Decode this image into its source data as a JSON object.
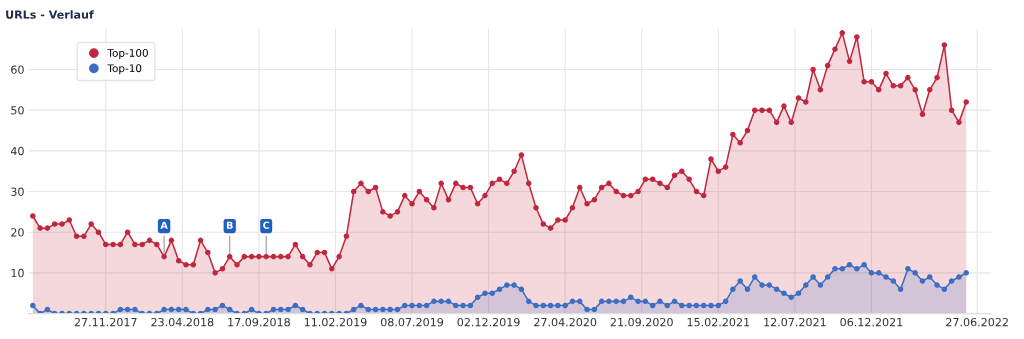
{
  "chart_data": {
    "type": "area",
    "title": "URLs - Verlauf",
    "x": [
      "2017-07-10",
      "2017-07-24",
      "2017-08-07",
      "2017-08-21",
      "2017-09-04",
      "2017-09-18",
      "2017-10-02",
      "2017-10-16",
      "2017-10-30",
      "2017-11-13",
      "2017-11-27",
      "2017-12-11",
      "2017-12-25",
      "2018-01-08",
      "2018-01-22",
      "2018-02-05",
      "2018-02-19",
      "2018-03-05",
      "2018-03-19",
      "2018-04-02",
      "2018-04-16",
      "2018-04-30",
      "2018-05-14",
      "2018-05-28",
      "2018-06-11",
      "2018-06-25",
      "2018-07-09",
      "2018-07-23",
      "2018-08-06",
      "2018-08-20",
      "2018-09-03",
      "2018-09-17",
      "2018-10-01",
      "2018-10-15",
      "2018-10-29",
      "2018-11-12",
      "2018-11-26",
      "2018-12-10",
      "2018-12-24",
      "2019-01-07",
      "2019-01-21",
      "2019-02-04",
      "2019-02-18",
      "2019-03-04",
      "2019-03-18",
      "2019-04-01",
      "2019-04-15",
      "2019-04-29",
      "2019-05-13",
      "2019-05-27",
      "2019-06-10",
      "2019-06-24",
      "2019-07-08",
      "2019-07-22",
      "2019-08-05",
      "2019-08-19",
      "2019-09-02",
      "2019-09-16",
      "2019-09-30",
      "2019-10-14",
      "2019-10-28",
      "2019-11-11",
      "2019-11-25",
      "2019-12-09",
      "2019-12-23",
      "2020-01-06",
      "2020-01-20",
      "2020-02-03",
      "2020-02-17",
      "2020-03-02",
      "2020-03-16",
      "2020-03-30",
      "2020-04-13",
      "2020-04-27",
      "2020-05-11",
      "2020-05-25",
      "2020-06-08",
      "2020-06-22",
      "2020-07-06",
      "2020-07-20",
      "2020-08-03",
      "2020-08-17",
      "2020-08-31",
      "2020-09-14",
      "2020-09-28",
      "2020-10-12",
      "2020-10-26",
      "2020-11-09",
      "2020-11-23",
      "2020-12-07",
      "2020-12-21",
      "2021-01-04",
      "2021-01-18",
      "2021-02-01",
      "2021-02-15",
      "2021-03-01",
      "2021-03-15",
      "2021-03-29",
      "2021-04-12",
      "2021-04-26",
      "2021-05-10",
      "2021-05-24",
      "2021-06-07",
      "2021-06-21",
      "2021-07-05",
      "2021-07-19",
      "2021-08-02",
      "2021-08-16",
      "2021-08-30",
      "2021-09-13",
      "2021-09-27",
      "2021-10-11",
      "2021-10-25",
      "2021-11-08",
      "2021-11-22",
      "2021-12-06",
      "2021-12-20",
      "2022-01-03",
      "2022-01-17",
      "2022-01-31",
      "2022-02-14",
      "2022-02-28",
      "2022-03-14",
      "2022-03-28",
      "2022-04-11",
      "2022-04-25",
      "2022-05-09",
      "2022-05-23",
      "2022-06-06"
    ],
    "series": [
      {
        "name": "Top-100",
        "color": "#c0283f",
        "values": [
          24,
          21,
          21,
          22,
          22,
          23,
          19,
          19,
          22,
          20,
          17,
          17,
          17,
          20,
          17,
          17,
          18,
          17,
          14,
          18,
          13,
          12,
          12,
          18,
          15,
          10,
          11,
          14,
          12,
          14,
          14,
          14,
          14,
          14,
          14,
          14,
          17,
          14,
          12,
          15,
          15,
          11,
          14,
          19,
          30,
          32,
          30,
          31,
          25,
          24,
          25,
          29,
          27,
          30,
          28,
          26,
          32,
          28,
          32,
          31,
          31,
          27,
          29,
          32,
          33,
          32,
          35,
          39,
          32,
          26,
          22,
          21,
          23,
          23,
          26,
          31,
          27,
          28,
          31,
          32,
          30,
          29,
          29,
          30,
          33,
          33,
          32,
          31,
          34,
          35,
          33,
          30,
          29,
          38,
          35,
          36,
          44,
          42,
          45,
          50,
          50,
          50,
          47,
          51,
          47,
          53,
          52,
          60,
          55,
          61,
          65,
          69,
          62,
          68,
          57,
          57,
          55,
          59,
          56,
          56,
          58,
          55,
          49,
          55,
          58,
          66,
          50,
          47,
          52
        ]
      },
      {
        "name": "Top-10",
        "color": "#3d6ec4",
        "values": [
          2,
          0,
          1,
          0,
          0,
          0,
          0,
          0,
          0,
          0,
          0,
          0,
          1,
          1,
          1,
          0,
          0,
          0,
          1,
          1,
          1,
          1,
          0,
          0,
          1,
          1,
          2,
          1,
          0,
          0,
          1,
          0,
          0,
          1,
          1,
          1,
          2,
          1,
          0,
          0,
          0,
          0,
          0,
          0,
          1,
          2,
          1,
          1,
          1,
          1,
          1,
          2,
          2,
          2,
          2,
          3,
          3,
          3,
          2,
          2,
          2,
          4,
          5,
          5,
          6,
          7,
          7,
          6,
          3,
          2,
          2,
          2,
          2,
          2,
          3,
          3,
          1,
          1,
          3,
          3,
          3,
          3,
          4,
          3,
          3,
          2,
          3,
          2,
          3,
          2,
          2,
          2,
          2,
          2,
          2,
          3,
          6,
          8,
          6,
          9,
          7,
          7,
          6,
          5,
          4,
          5,
          7,
          9,
          7,
          9,
          11,
          11,
          12,
          11,
          12,
          10,
          10,
          9,
          8,
          6,
          11,
          10,
          8,
          9,
          7,
          6,
          8,
          9,
          10
        ]
      }
    ],
    "xlim": [
      "2017-07-02",
      "2022-07-24"
    ],
    "xticks": [
      {
        "value": "2017-11-27",
        "label": "27.11.2017"
      },
      {
        "value": "2018-04-23",
        "label": "23.04.2018"
      },
      {
        "value": "2018-09-17",
        "label": "17.09.2018"
      },
      {
        "value": "2019-02-11",
        "label": "11.02.2019"
      },
      {
        "value": "2019-07-08",
        "label": "08.07.2019"
      },
      {
        "value": "2019-12-02",
        "label": "02.12.2019"
      },
      {
        "value": "2020-04-27",
        "label": "27.04.2020"
      },
      {
        "value": "2020-09-21",
        "label": "21.09.2020"
      },
      {
        "value": "2021-02-15",
        "label": "15.02.2021"
      },
      {
        "value": "2021-07-12",
        "label": "12.07.2021"
      },
      {
        "value": "2021-12-06",
        "label": "06.12.2021"
      },
      {
        "value": "2022-06-27",
        "label": "27.06.2022"
      }
    ],
    "ylim": [
      0,
      70
    ],
    "yticks": [
      10,
      20,
      30,
      40,
      50,
      60
    ],
    "annotations": [
      {
        "text": "A",
        "x": "2018-03-19",
        "y": 14
      },
      {
        "text": "B",
        "x": "2018-07-23",
        "y": 14
      },
      {
        "text": "C",
        "x": "2018-10-01",
        "y": 14
      }
    ],
    "grid": true,
    "legend": "top left",
    "marker": "circle",
    "line_style": "solid"
  }
}
